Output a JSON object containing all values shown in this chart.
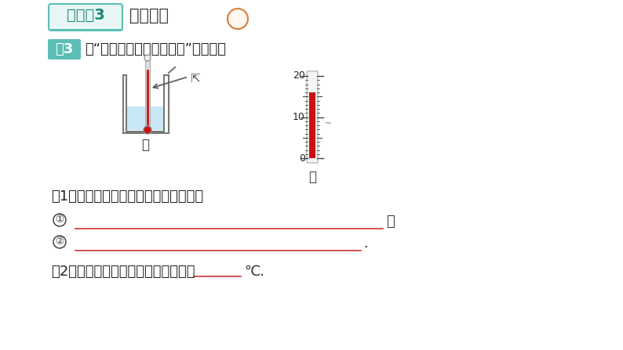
{
  "bg_color": "#ffffff",
  "title_box_text": "知识点3",
  "title_box_color": "#e8f7f5",
  "title_box_border": "#5bbfb5",
  "title_box_text_color": "#1a8a7a",
  "title_main_text": "测量温度",
  "title_main_color": "#333333",
  "chongdian_color": "#d97c3a",
  "example_label": "例3",
  "example_label_bg": "#5bbfb5",
  "example_label_text_color": "#ffffff",
  "question_text": "在“用温度计测量水的温度”实验中：",
  "beaker_label": "甲",
  "thermo_label": "乙",
  "q1_text": "（1）请指出图甲所示操作的错误之处：",
  "circle1": "①",
  "line1_semicolon": "；",
  "circle2": "②",
  "line2_period": ".",
  "q2_text": "（2）温度计示数如图乙所示，应记为",
  "q2_unit": "℃.",
  "line_color": "#cc3333",
  "thermo_mercury_color": "#cc1111",
  "water_color": "#c8e8f5"
}
